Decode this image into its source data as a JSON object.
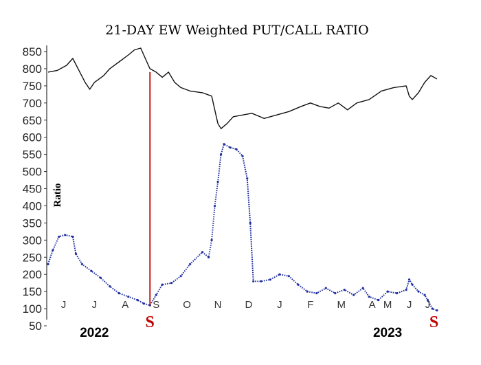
{
  "chart_data": {
    "type": "line",
    "title": "21-DAY EW Weighted PUT/CALL RATIO",
    "ylabel": "Ratio",
    "xlabel": "",
    "ylim": [
      50,
      850
    ],
    "y_ticks": [
      850,
      800,
      750,
      700,
      650,
      600,
      550,
      500,
      450,
      400,
      350,
      300,
      250,
      200,
      150,
      100,
      50
    ],
    "x_range": [
      0,
      12.6
    ],
    "months": [
      {
        "label": "J",
        "x": 0.5
      },
      {
        "label": "J",
        "x": 1.5
      },
      {
        "label": "A",
        "x": 2.5
      },
      {
        "label": "S",
        "x": 3.5
      },
      {
        "label": "O",
        "x": 4.5
      },
      {
        "label": "N",
        "x": 5.5
      },
      {
        "label": "D",
        "x": 6.5
      },
      {
        "label": "J",
        "x": 7.5
      },
      {
        "label": "F",
        "x": 8.5
      },
      {
        "label": "M",
        "x": 9.5
      },
      {
        "label": "A",
        "x": 10.5
      },
      {
        "label": "M",
        "x": 11.0
      },
      {
        "label": "J",
        "x": 11.7
      },
      {
        "label": "J",
        "x": 12.3
      }
    ],
    "years": [
      {
        "label": "2022",
        "x": 1.5
      },
      {
        "label": "2023",
        "x": 11.0
      }
    ],
    "signals": [
      {
        "label": "S",
        "x": 3.3
      },
      {
        "label": "S",
        "x": 12.5
      }
    ],
    "signal_line": {
      "x": 3.3,
      "y_from": 110,
      "y_to": 790
    },
    "series": [
      {
        "name": "",
        "color": "#111111",
        "style": "solid",
        "points": [
          [
            0.0,
            790
          ],
          [
            0.3,
            795
          ],
          [
            0.6,
            810
          ],
          [
            0.8,
            830
          ],
          [
            1.0,
            795
          ],
          [
            1.2,
            760
          ],
          [
            1.35,
            740
          ],
          [
            1.5,
            760
          ],
          [
            1.8,
            780
          ],
          [
            2.0,
            800
          ],
          [
            2.3,
            820
          ],
          [
            2.6,
            840
          ],
          [
            2.8,
            855
          ],
          [
            3.0,
            860
          ],
          [
            3.2,
            820
          ],
          [
            3.3,
            800
          ],
          [
            3.5,
            790
          ],
          [
            3.7,
            775
          ],
          [
            3.9,
            790
          ],
          [
            4.1,
            760
          ],
          [
            4.3,
            745
          ],
          [
            4.6,
            735
          ],
          [
            5.0,
            730
          ],
          [
            5.3,
            720
          ],
          [
            5.45,
            660
          ],
          [
            5.5,
            640
          ],
          [
            5.6,
            625
          ],
          [
            5.8,
            640
          ],
          [
            6.0,
            660
          ],
          [
            6.3,
            665
          ],
          [
            6.6,
            670
          ],
          [
            7.0,
            655
          ],
          [
            7.4,
            665
          ],
          [
            7.8,
            675
          ],
          [
            8.2,
            690
          ],
          [
            8.5,
            700
          ],
          [
            8.8,
            690
          ],
          [
            9.1,
            685
          ],
          [
            9.4,
            700
          ],
          [
            9.7,
            680
          ],
          [
            10.0,
            700
          ],
          [
            10.4,
            710
          ],
          [
            10.8,
            735
          ],
          [
            11.2,
            745
          ],
          [
            11.6,
            750
          ],
          [
            11.7,
            720
          ],
          [
            11.8,
            710
          ],
          [
            12.0,
            730
          ],
          [
            12.2,
            760
          ],
          [
            12.4,
            780
          ],
          [
            12.6,
            770
          ]
        ]
      },
      {
        "name": "",
        "color": "#1f2f9f",
        "style": "dotted",
        "points": [
          [
            0.0,
            230
          ],
          [
            0.15,
            270
          ],
          [
            0.35,
            310
          ],
          [
            0.55,
            315
          ],
          [
            0.8,
            310
          ],
          [
            0.9,
            260
          ],
          [
            1.1,
            230
          ],
          [
            1.4,
            210
          ],
          [
            1.7,
            190
          ],
          [
            2.0,
            165
          ],
          [
            2.3,
            145
          ],
          [
            2.6,
            135
          ],
          [
            2.9,
            125
          ],
          [
            3.1,
            115
          ],
          [
            3.3,
            110
          ],
          [
            3.5,
            140
          ],
          [
            3.7,
            170
          ],
          [
            4.0,
            175
          ],
          [
            4.3,
            195
          ],
          [
            4.6,
            230
          ],
          [
            5.0,
            265
          ],
          [
            5.2,
            250
          ],
          [
            5.3,
            300
          ],
          [
            5.4,
            400
          ],
          [
            5.5,
            470
          ],
          [
            5.6,
            550
          ],
          [
            5.7,
            580
          ],
          [
            5.9,
            570
          ],
          [
            6.1,
            565
          ],
          [
            6.3,
            545
          ],
          [
            6.45,
            480
          ],
          [
            6.55,
            350
          ],
          [
            6.65,
            180
          ],
          [
            6.9,
            180
          ],
          [
            7.2,
            185
          ],
          [
            7.5,
            200
          ],
          [
            7.8,
            195
          ],
          [
            8.1,
            170
          ],
          [
            8.4,
            150
          ],
          [
            8.7,
            145
          ],
          [
            9.0,
            160
          ],
          [
            9.3,
            145
          ],
          [
            9.6,
            155
          ],
          [
            9.9,
            140
          ],
          [
            10.2,
            160
          ],
          [
            10.4,
            135
          ],
          [
            10.7,
            125
          ],
          [
            11.0,
            150
          ],
          [
            11.3,
            145
          ],
          [
            11.6,
            155
          ],
          [
            11.7,
            185
          ],
          [
            11.8,
            170
          ],
          [
            12.0,
            150
          ],
          [
            12.2,
            140
          ],
          [
            12.3,
            125
          ],
          [
            12.45,
            100
          ],
          [
            12.6,
            95
          ]
        ]
      }
    ],
    "grid": false,
    "legend": "none"
  }
}
